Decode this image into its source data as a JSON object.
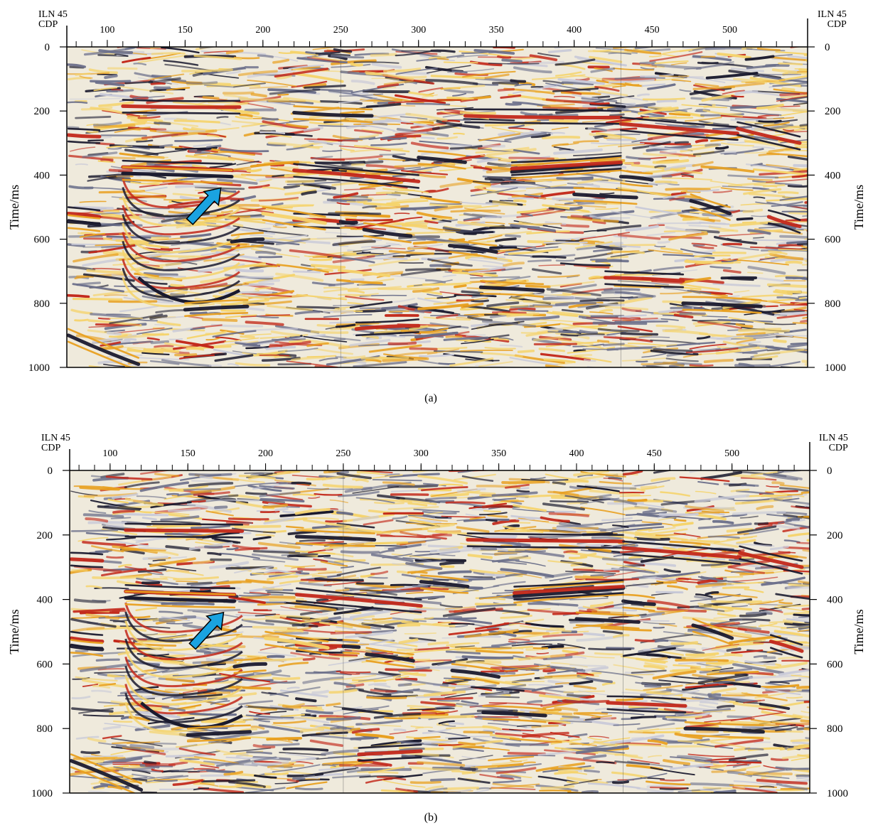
{
  "chart_data": [
    {
      "type": "heatmap",
      "panel_label": "(a)",
      "header_left": {
        "iln_label": "ILN",
        "iln_value": "45",
        "cdp_label": "CDP"
      },
      "header_right": {
        "iln_label": "ILN",
        "iln_value": "45",
        "cdp_label": "CDP"
      },
      "x_ticks": [
        100,
        150,
        200,
        250,
        300,
        350,
        400,
        450,
        500
      ],
      "xlim": [
        74,
        550
      ],
      "y_ticks": [
        0,
        200,
        400,
        600,
        800,
        1000
      ],
      "ylim": [
        0,
        1000
      ],
      "ylabel_left": "Time/ms",
      "ylabel_right": "Time/ms",
      "arrow": {
        "from": {
          "cdp": 153,
          "time_ms": 545
        },
        "to": {
          "cdp": 173,
          "time_ms": 440
        }
      },
      "colormap": [
        "#1a1a2e",
        "#6b6f8a",
        "#c9cad8",
        "#f4f0e6",
        "#f5d36b",
        "#e8a020",
        "#c2281a"
      ],
      "arrow_color": "#1aa3e0"
    },
    {
      "type": "heatmap",
      "panel_label": "(b)",
      "header_left": {
        "iln_label": "ILN",
        "iln_value": "45",
        "cdp_label": "CDP"
      },
      "header_right": {
        "iln_label": "ILN",
        "iln_value": "45",
        "cdp_label": "CDP"
      },
      "x_ticks": [
        100,
        150,
        200,
        250,
        300,
        350,
        400,
        450,
        500
      ],
      "xlim": [
        74,
        550
      ],
      "y_ticks": [
        0,
        200,
        400,
        600,
        800,
        1000
      ],
      "ylim": [
        0,
        1000
      ],
      "ylabel_left": "Time/ms",
      "ylabel_right": "Time/ms",
      "arrow": {
        "from": {
          "cdp": 153,
          "time_ms": 545
        },
        "to": {
          "cdp": 173,
          "time_ms": 440
        }
      },
      "colormap": [
        "#1a1a2e",
        "#6b6f8a",
        "#c9cad8",
        "#f4f0e6",
        "#f5d36b",
        "#e8a020",
        "#c2281a"
      ],
      "arrow_color": "#1aa3e0"
    }
  ]
}
